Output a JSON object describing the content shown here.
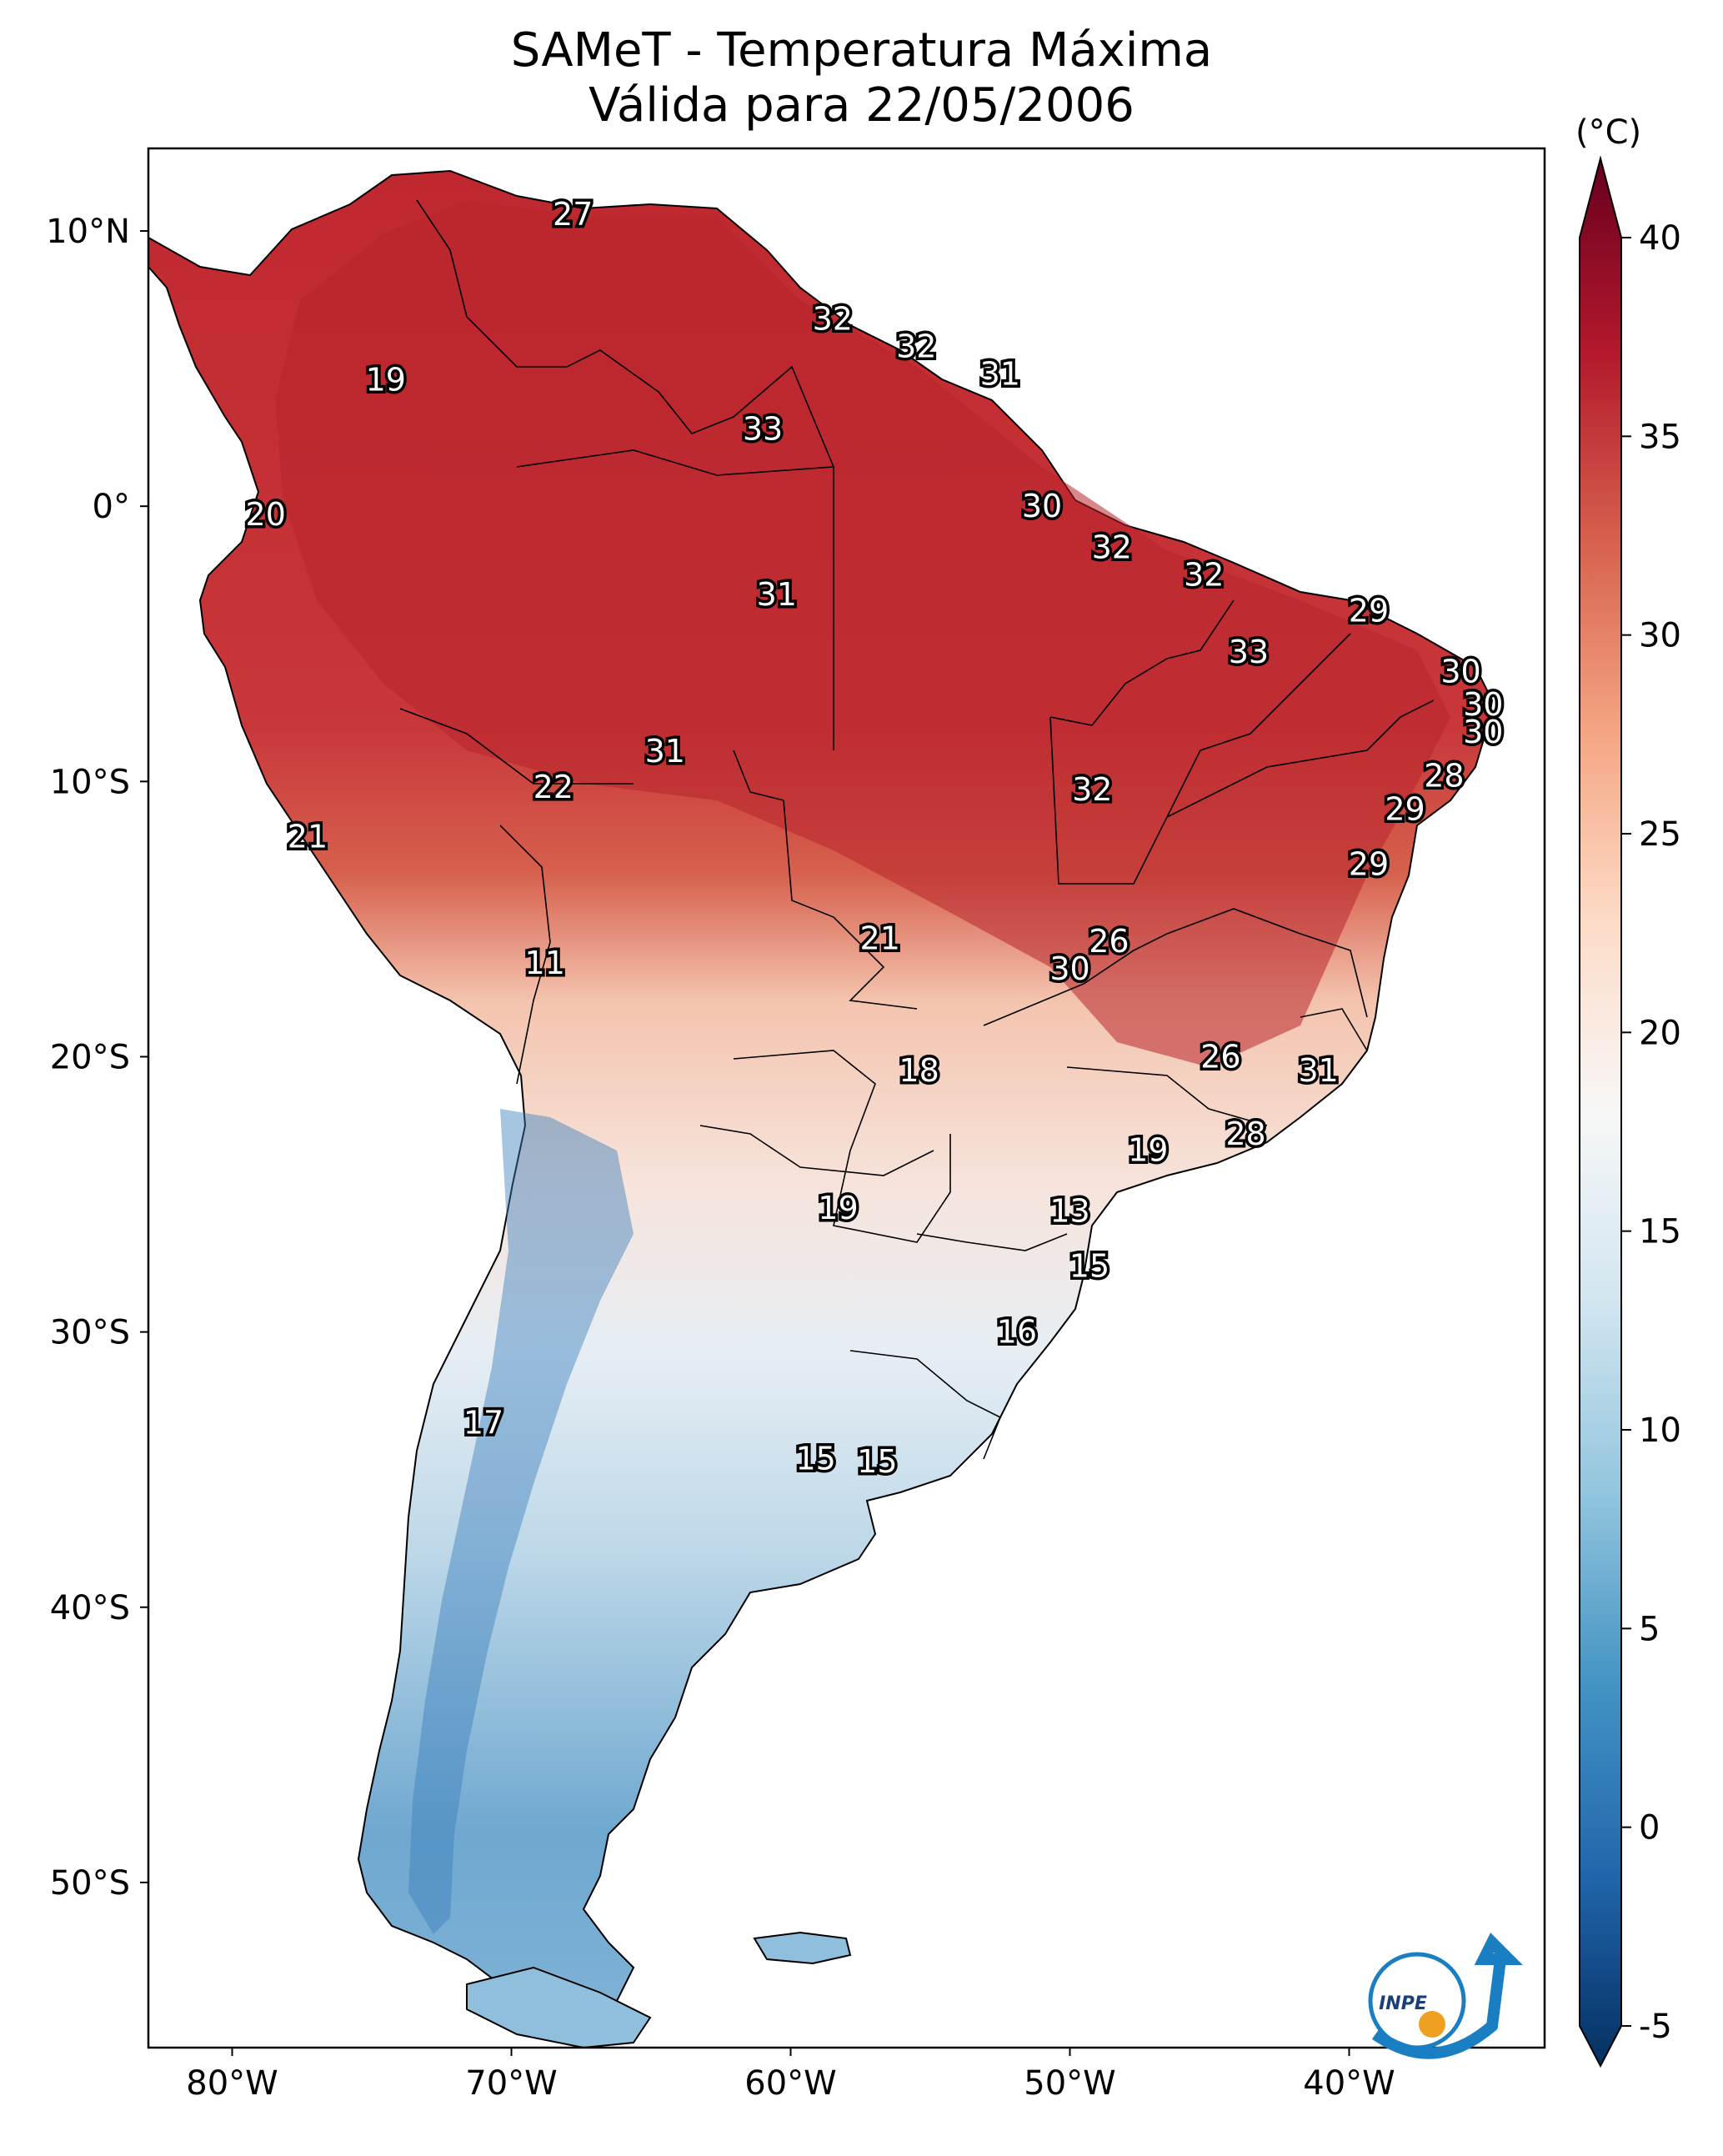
{
  "title": {
    "line1": "SAMeT - Temperatura Máxima",
    "line2": "Válida para 22/05/2006"
  },
  "map": {
    "region": "South America",
    "lon_range": [
      -83,
      -33
    ],
    "lat_range": [
      -56,
      13
    ],
    "lon_ticks": [
      "80°W",
      "70°W",
      "60°W",
      "50°W",
      "40°W"
    ],
    "lat_ticks": [
      "10°N",
      "0°",
      "10°S",
      "20°S",
      "30°S",
      "40°S",
      "50°S"
    ],
    "labels": [
      {
        "text": "27",
        "lon": -67.8,
        "lat": 10.6
      },
      {
        "text": "19",
        "lon": -74.5,
        "lat": 4.6
      },
      {
        "text": "32",
        "lon": -58.5,
        "lat": 6.8
      },
      {
        "text": "32",
        "lon": -55.5,
        "lat": 5.8
      },
      {
        "text": "31",
        "lon": -52.5,
        "lat": 4.8
      },
      {
        "text": "33",
        "lon": -61.0,
        "lat": 2.8
      },
      {
        "text": "20",
        "lon": -78.8,
        "lat": -0.3
      },
      {
        "text": "30",
        "lon": -51.0,
        "lat": 0.0
      },
      {
        "text": "32",
        "lon": -48.5,
        "lat": -1.5
      },
      {
        "text": "32",
        "lon": -45.2,
        "lat": -2.5
      },
      {
        "text": "31",
        "lon": -60.5,
        "lat": -3.2
      },
      {
        "text": "29",
        "lon": -39.3,
        "lat": -3.8
      },
      {
        "text": "33",
        "lon": -43.6,
        "lat": -5.3
      },
      {
        "text": "30",
        "lon": -36.0,
        "lat": -6.0
      },
      {
        "text": "30",
        "lon": -35.2,
        "lat": -7.2
      },
      {
        "text": "30",
        "lon": -35.2,
        "lat": -8.2
      },
      {
        "text": "31",
        "lon": -64.5,
        "lat": -8.9
      },
      {
        "text": "22",
        "lon": -68.5,
        "lat": -10.2
      },
      {
        "text": "32",
        "lon": -49.2,
        "lat": -10.3
      },
      {
        "text": "28",
        "lon": -36.6,
        "lat": -9.8
      },
      {
        "text": "29",
        "lon": -38.0,
        "lat": -11.0
      },
      {
        "text": "21",
        "lon": -77.3,
        "lat": -12.0
      },
      {
        "text": "29",
        "lon": -39.3,
        "lat": -13.0
      },
      {
        "text": "21",
        "lon": -56.8,
        "lat": -15.7
      },
      {
        "text": "26",
        "lon": -48.6,
        "lat": -15.8
      },
      {
        "text": "11",
        "lon": -68.8,
        "lat": -16.6
      },
      {
        "text": "30",
        "lon": -50.0,
        "lat": -16.8
      },
      {
        "text": "26",
        "lon": -44.6,
        "lat": -20.0
      },
      {
        "text": "31",
        "lon": -41.1,
        "lat": -20.5
      },
      {
        "text": "18",
        "lon": -55.4,
        "lat": -20.5
      },
      {
        "text": "28",
        "lon": -43.7,
        "lat": -22.8
      },
      {
        "text": "19",
        "lon": -47.2,
        "lat": -23.4
      },
      {
        "text": "19",
        "lon": -58.3,
        "lat": -25.5
      },
      {
        "text": "13",
        "lon": -50.0,
        "lat": -25.6
      },
      {
        "text": "15",
        "lon": -49.3,
        "lat": -27.6
      },
      {
        "text": "16",
        "lon": -51.9,
        "lat": -30.0
      },
      {
        "text": "17",
        "lon": -71.0,
        "lat": -33.3
      },
      {
        "text": "15",
        "lon": -59.1,
        "lat": -34.6
      },
      {
        "text": "15",
        "lon": -56.9,
        "lat": -34.7
      }
    ]
  },
  "colorbar": {
    "unit": "(°C)",
    "min": -5,
    "max": 40,
    "ticks": [
      "40",
      "35",
      "30",
      "25",
      "20",
      "15",
      "10",
      "5",
      "0",
      "-5"
    ],
    "colormap": "RdBu_r",
    "colors": [
      "#053061",
      "#2166ac",
      "#4393c3",
      "#92c5de",
      "#d1e5f0",
      "#f7f7f7",
      "#fddbc7",
      "#f4a582",
      "#d6604d",
      "#b2182b",
      "#67001f"
    ]
  },
  "logo": {
    "text": "INPE"
  }
}
